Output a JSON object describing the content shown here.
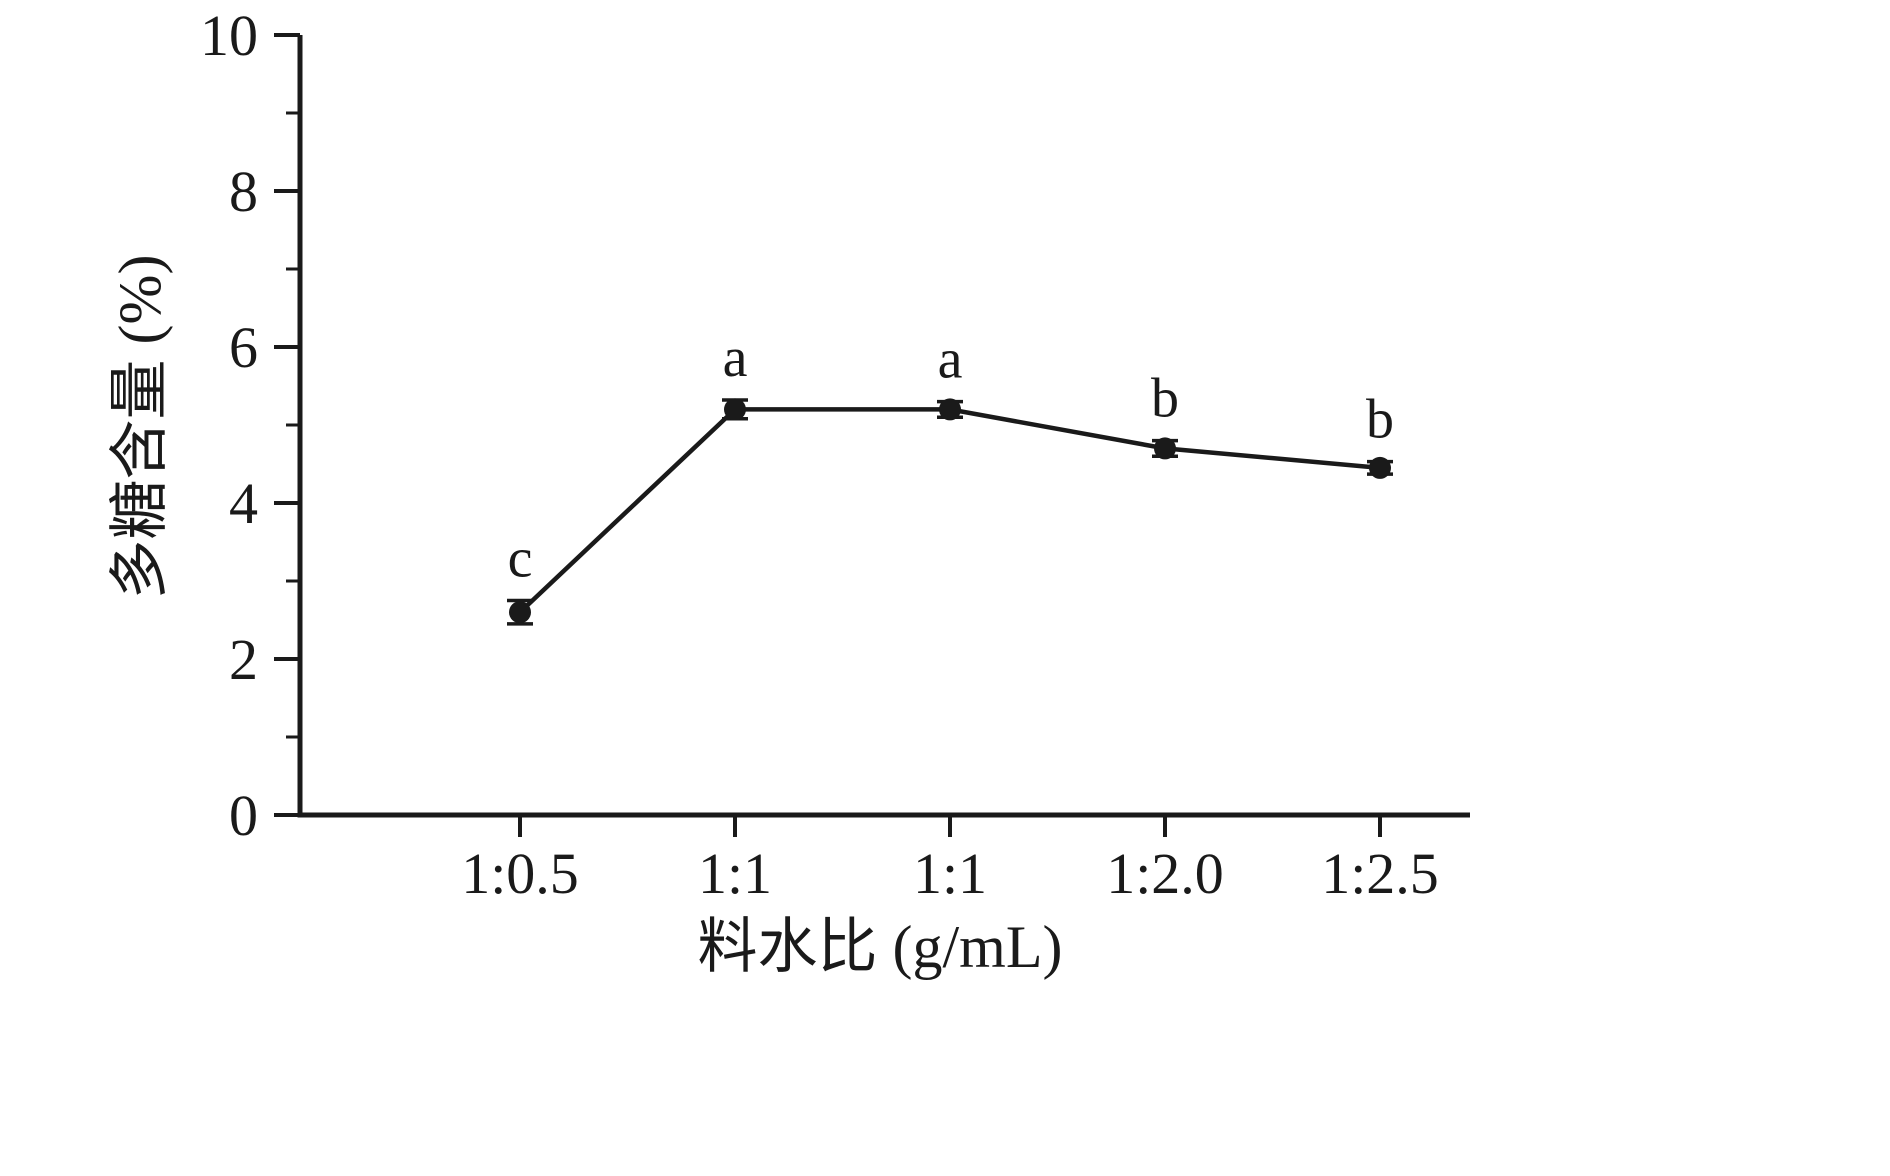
{
  "chart_data": {
    "type": "line",
    "title": "",
    "xlabel": "料水比 (g/mL)",
    "ylabel": "多糖含量 (%)",
    "categories": [
      "1:0.5",
      "1:1",
      "1:1",
      "1:2.0",
      "1:2.5"
    ],
    "series": [
      {
        "name": "多糖含量",
        "values": [
          2.6,
          5.2,
          5.2,
          4.7,
          4.45
        ],
        "errors": [
          0.15,
          0.12,
          0.1,
          0.1,
          0.08
        ],
        "point_labels": [
          "c",
          "a",
          "a",
          "b",
          "b"
        ]
      }
    ],
    "ylim": [
      0,
      10
    ],
    "yticks": [
      0,
      2,
      4,
      6,
      8,
      10
    ],
    "minor_ytick_step": 1,
    "grid": false,
    "legend": "none",
    "line_color": "#1a1a1a",
    "marker": "circle"
  }
}
